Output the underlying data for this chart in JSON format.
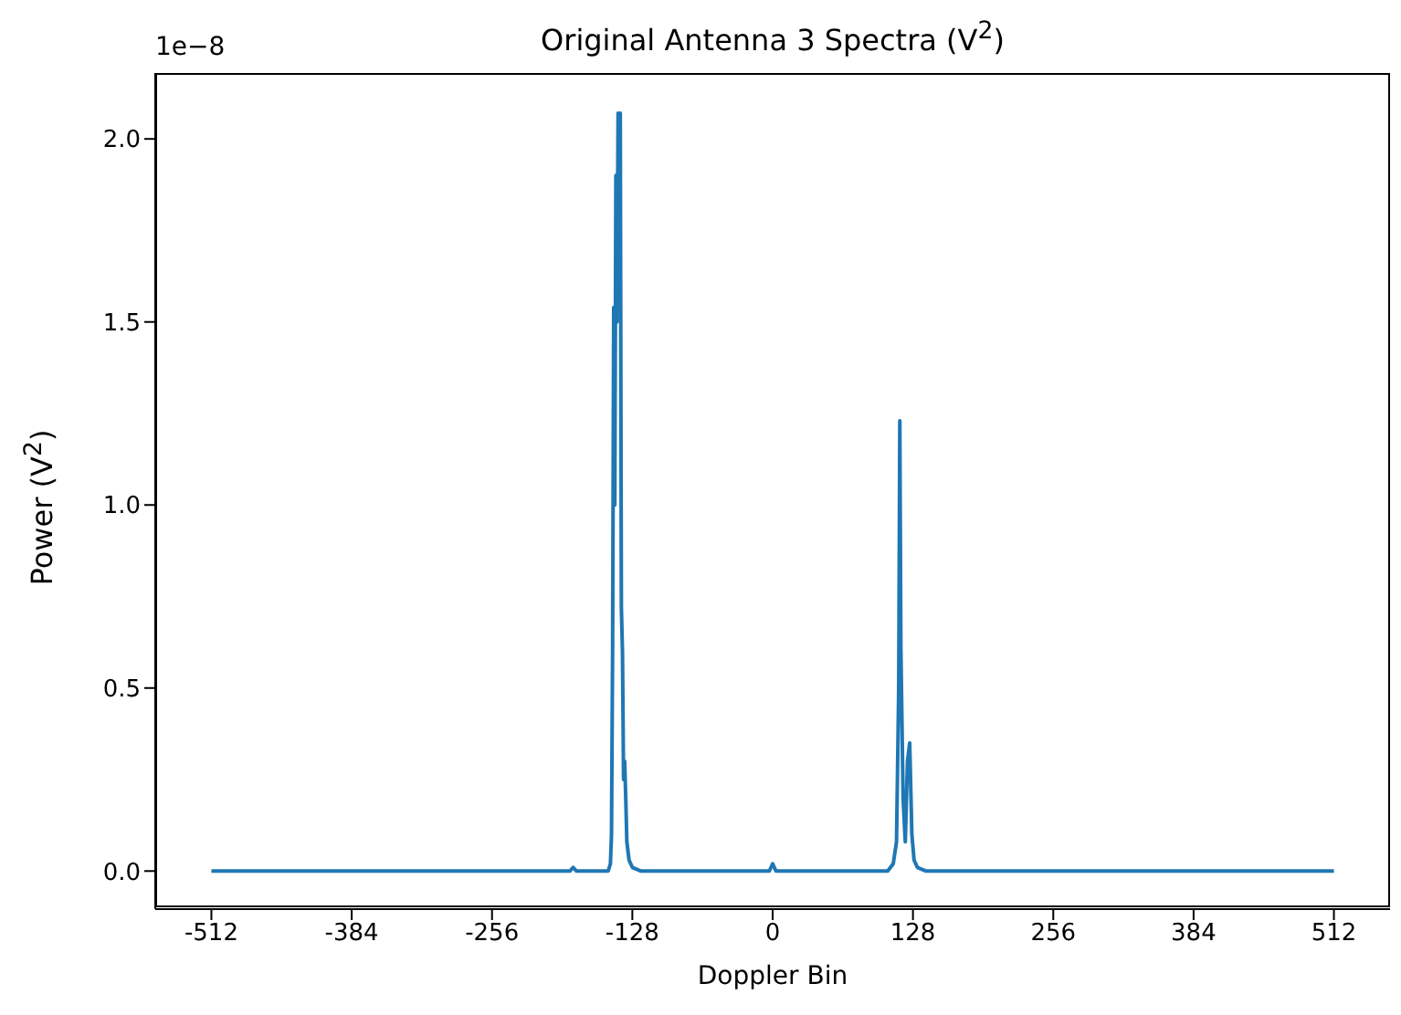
{
  "chart_data": {
    "type": "line",
    "title": "Original Antenna 3 Spectra (V$^{2}$)",
    "xlabel": "Doppler Bin",
    "ylabel": "Power (V$^{2}$)",
    "annotations": [
      "1e−8"
    ],
    "xlim": [
      -563.2,
      563.2
    ],
    "xticks": [
      -512,
      -384,
      -256,
      -128,
      0,
      128,
      256,
      384,
      512
    ],
    "ylim": [
      -0.104,
      2.18
    ],
    "yticks": [
      {
        "value": 0,
        "label": "0.0"
      },
      0.5,
      {
        "value": 1,
        "label": "1.0"
      },
      1.5,
      {
        "value": 2,
        "label": "2.0"
      }
    ],
    "marker": "none",
    "line_style": "solid",
    "series": [
      {
        "color": "#1f77b4",
        "x": [
          -512,
          -400,
          -300,
          -185,
          -182,
          -179,
          -160,
          -150,
          -148,
          -147,
          -146,
          -145,
          -144,
          -143,
          -142,
          -141,
          -140,
          -139,
          -138,
          -137,
          -136,
          -135,
          -134,
          -133,
          -131,
          -128,
          -120,
          -60,
          -3,
          0,
          3,
          60,
          105,
          110,
          113,
          115,
          116,
          117,
          119,
          121,
          123,
          125,
          127,
          129,
          132,
          140,
          200,
          300,
          400,
          512
        ],
        "values": [
          0,
          0,
          0,
          0,
          0.01,
          0,
          0,
          0,
          0.02,
          0.1,
          0.6,
          1.54,
          1.0,
          1.9,
          1.5,
          2.07,
          1.8,
          2.07,
          0.72,
          0.6,
          0.25,
          0.3,
          0.2,
          0.08,
          0.03,
          0.01,
          0,
          0,
          0,
          0.02,
          0,
          0,
          0,
          0.02,
          0.08,
          0.5,
          1.23,
          0.6,
          0.2,
          0.08,
          0.3,
          0.35,
          0.1,
          0.03,
          0.01,
          0,
          0,
          0,
          0,
          0
        ]
      }
    ]
  }
}
